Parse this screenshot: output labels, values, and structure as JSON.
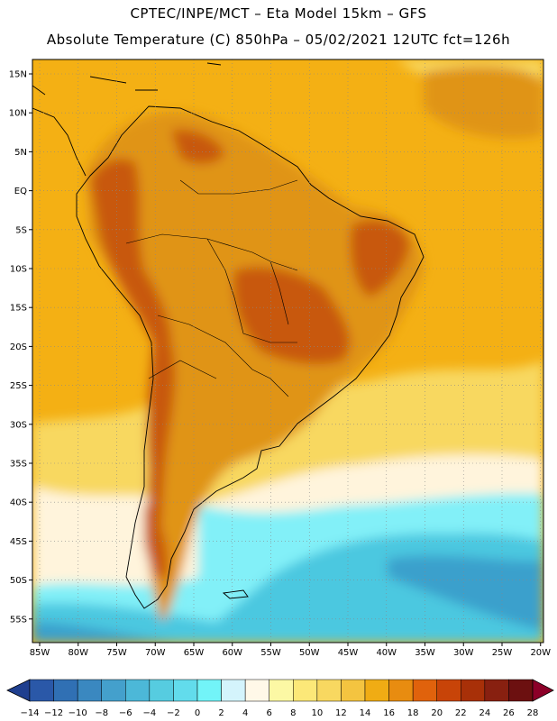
{
  "header": {
    "line1": "CPTEC/INPE/MCT –  Eta Model 15km – GFS",
    "line2": "Absolute Temperature (C) 850hPa – 05/02/2021 12UTC fct=126h"
  },
  "map": {
    "lat_labels": [
      "15N",
      "10N",
      "5N",
      "EQ",
      "5S",
      "10S",
      "15S",
      "20S",
      "25S",
      "30S",
      "35S",
      "40S",
      "45S",
      "50S",
      "55S"
    ],
    "lon_labels": [
      "85W",
      "80W",
      "75W",
      "70W",
      "65W",
      "60W",
      "55W",
      "50W",
      "45W",
      "40W",
      "35W",
      "30W",
      "25W",
      "20W"
    ],
    "graticule": "dotted",
    "region": "South America"
  },
  "colorbar": {
    "labels": [
      "-14",
      "-12",
      "-10",
      "-8",
      "-6",
      "-4",
      "-2",
      "0",
      "2",
      "4",
      "6",
      "8",
      "10",
      "12",
      "14",
      "16",
      "18",
      "20",
      "22",
      "24",
      "26",
      "28"
    ],
    "colors": [
      "#1f3f8f",
      "#2a58a8",
      "#3070b4",
      "#3a88c0",
      "#44a0cc",
      "#4cb8d8",
      "#56cce0",
      "#62dcec",
      "#72f4f8",
      "#d4f4fc",
      "#fff8e8",
      "#fcf8a4",
      "#fce878",
      "#f8d860",
      "#f4c440",
      "#f0ac14",
      "#e88c10",
      "#e0620c",
      "#c84408",
      "#a83008",
      "#882010",
      "#6c1010",
      "#8c0028"
    ]
  },
  "field_colors": {
    "hot": "#c8580c",
    "warm": "#e09418",
    "mild": "#f4b014",
    "cool": "#f8d860",
    "pale": "#fff4dc",
    "cold1": "#82f0f8",
    "cold2": "#4cc8e0",
    "cold3": "#3aa0cc"
  }
}
